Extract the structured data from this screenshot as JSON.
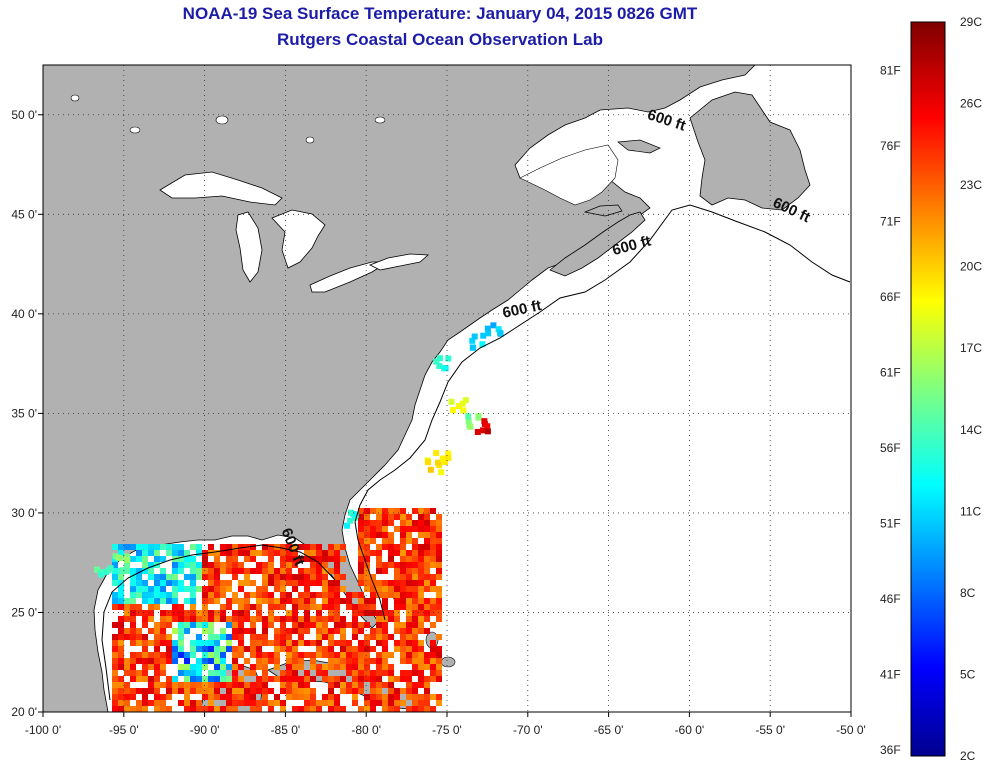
{
  "title_line1": "NOAA-19 Sea Surface Temperature:  January 04, 2015 0826 GMT",
  "title_line2": "Rutgers Coastal Ocean Observation Lab",
  "map": {
    "lon_range": [
      -100,
      -50
    ],
    "lat_range": [
      20,
      52.5
    ],
    "x_ticks": [
      {
        "value": -100,
        "label": "-100 0'"
      },
      {
        "value": -95,
        "label": "-95 0'"
      },
      {
        "value": -90,
        "label": "-90 0'"
      },
      {
        "value": -85,
        "label": "-85 0'"
      },
      {
        "value": -80,
        "label": "-80 0'"
      },
      {
        "value": -75,
        "label": "-75 0'"
      },
      {
        "value": -70,
        "label": "-70 0'"
      },
      {
        "value": -65,
        "label": "-65 0'"
      },
      {
        "value": -60,
        "label": "-60 0'"
      },
      {
        "value": -55,
        "label": "-55 0'"
      },
      {
        "value": -50,
        "label": "-50 0'"
      }
    ],
    "y_ticks": [
      {
        "value": 20,
        "label": "20 0'"
      },
      {
        "value": 25,
        "label": "25 0'"
      },
      {
        "value": 30,
        "label": "30 0'"
      },
      {
        "value": 35,
        "label": "35 0'"
      },
      {
        "value": 40,
        "label": "40 0'"
      },
      {
        "value": 45,
        "label": "45 0'"
      },
      {
        "value": 50,
        "label": "50 0'"
      }
    ],
    "depth_labels": [
      {
        "text": "600 ft",
        "lon": -61.5,
        "lat": 49.5,
        "rotate": 18
      },
      {
        "text": "600 ft",
        "lon": -53.8,
        "lat": 45.0,
        "rotate": 25
      },
      {
        "text": "600 ft",
        "lon": -63.5,
        "lat": 43.2,
        "rotate": -15
      },
      {
        "text": "600 ft",
        "lon": -70.3,
        "lat": 40.0,
        "rotate": -12
      },
      {
        "text": "600 ft",
        "lon": -84.8,
        "lat": 28.2,
        "rotate": 68
      }
    ],
    "colors": {
      "land": "#b1b1b1",
      "water": "#ffffff",
      "grid": "#333333",
      "coast": "#000000"
    }
  },
  "colorbar": {
    "range_c": [
      2,
      29
    ],
    "celsius_labels": [
      {
        "value": 29,
        "label": "29C"
      },
      {
        "value": 26,
        "label": "26C"
      },
      {
        "value": 23,
        "label": "23C"
      },
      {
        "value": 20,
        "label": "20C"
      },
      {
        "value": 17,
        "label": "17C"
      },
      {
        "value": 14,
        "label": "14C"
      },
      {
        "value": 11,
        "label": "11C"
      },
      {
        "value": 8,
        "label": "8C"
      },
      {
        "value": 5,
        "label": "5C"
      },
      {
        "value": 2,
        "label": "2C"
      }
    ],
    "fahrenheit_labels": [
      {
        "value": 81,
        "label": "81F"
      },
      {
        "value": 76,
        "label": "76F"
      },
      {
        "value": 71,
        "label": "71F"
      },
      {
        "value": 66,
        "label": "66F"
      },
      {
        "value": 61,
        "label": "61F"
      },
      {
        "value": 56,
        "label": "56F"
      },
      {
        "value": 51,
        "label": "51F"
      },
      {
        "value": 46,
        "label": "46F"
      },
      {
        "value": 41,
        "label": "41F"
      },
      {
        "value": 36,
        "label": "36F"
      }
    ]
  }
}
